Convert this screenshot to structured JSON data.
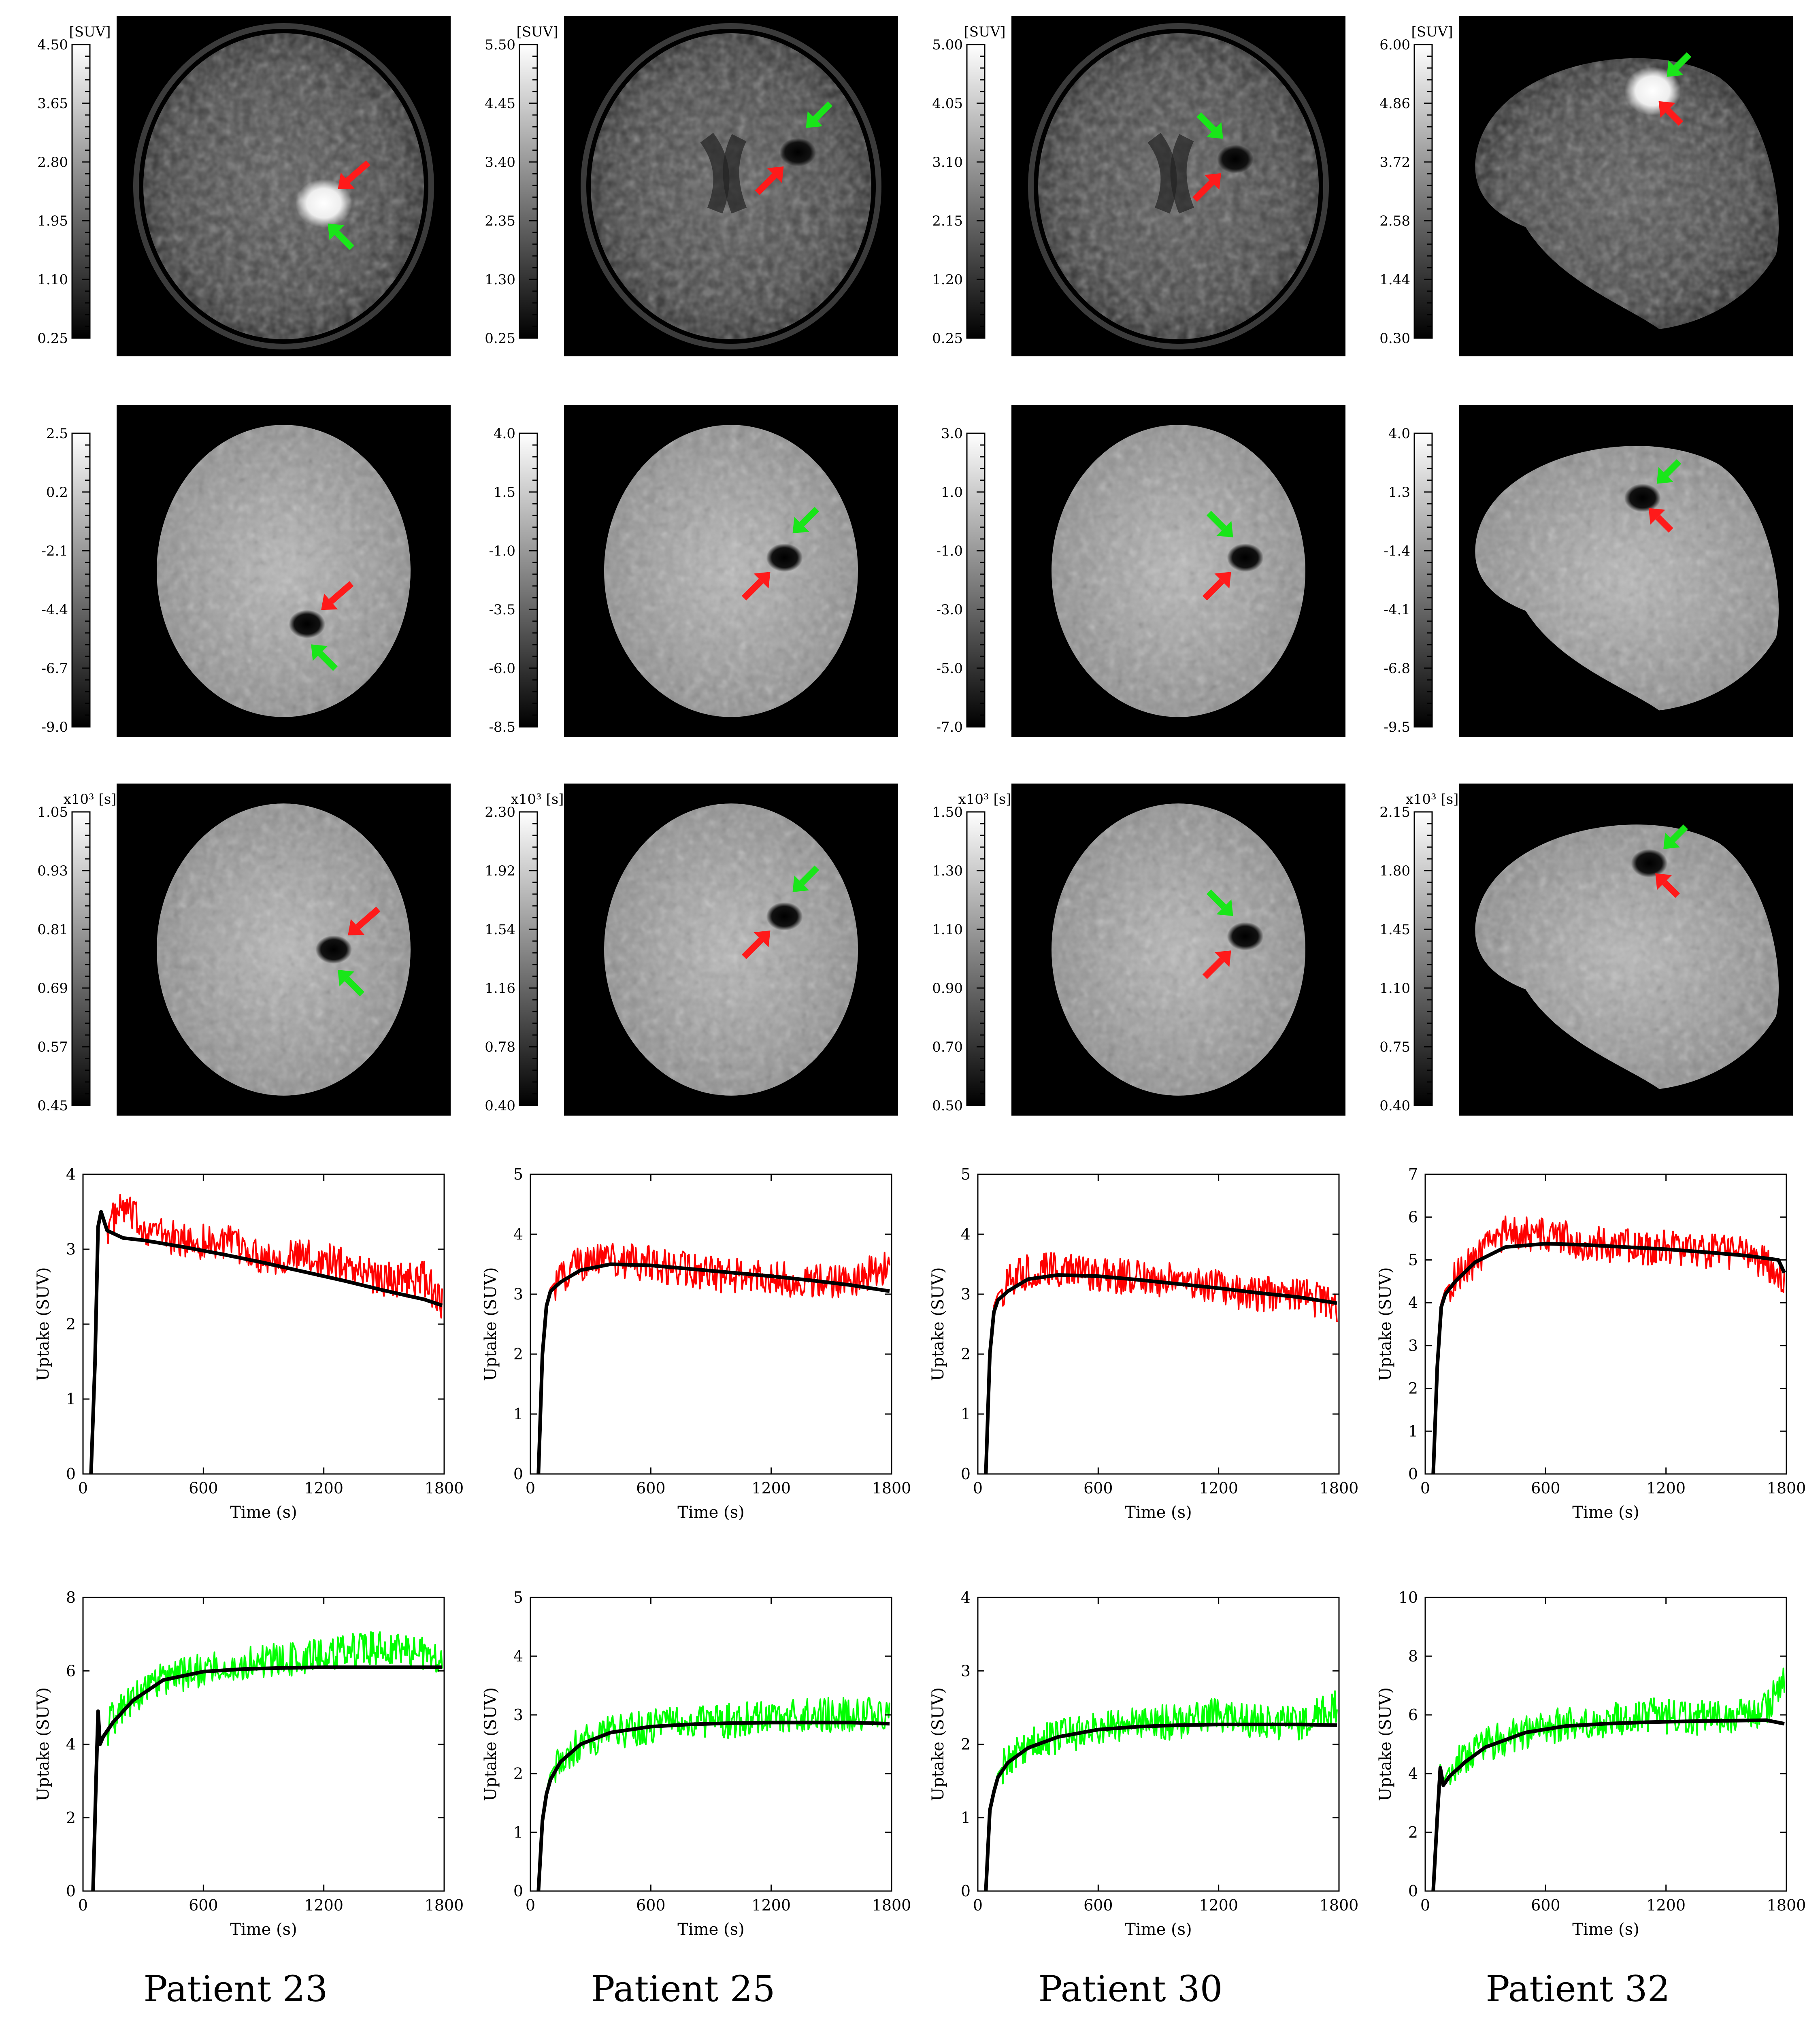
{
  "columns": [
    {
      "name": "Patient 23"
    },
    {
      "name": "Patient 25"
    },
    {
      "name": "Patient 30"
    },
    {
      "name": "Patient 32"
    }
  ],
  "colorbar_units": [
    "[SUV]",
    "",
    "x10³ [s]"
  ],
  "colorbars": [
    [
      {
        "ticks": [
          "4.50",
          "3.65",
          "2.80",
          "1.95",
          "1.10",
          "0.25"
        ]
      },
      {
        "ticks": [
          "5.50",
          "4.45",
          "3.40",
          "2.35",
          "1.30",
          "0.25"
        ]
      },
      {
        "ticks": [
          "5.00",
          "4.05",
          "3.10",
          "2.15",
          "1.20",
          "0.25"
        ]
      },
      {
        "ticks": [
          "6.00",
          "4.86",
          "3.72",
          "2.58",
          "1.44",
          "0.30"
        ]
      }
    ],
    [
      {
        "ticks": [
          "2.5",
          "0.2",
          "-2.1",
          "-4.4",
          "-6.7",
          "-9.0"
        ]
      },
      {
        "ticks": [
          "4.0",
          "1.5",
          "-1.0",
          "-3.5",
          "-6.0",
          "-8.5"
        ]
      },
      {
        "ticks": [
          "3.0",
          "1.0",
          "-1.0",
          "-3.0",
          "-5.0",
          "-7.0"
        ]
      },
      {
        "ticks": [
          "4.0",
          "1.3",
          "-1.4",
          "-4.1",
          "-6.8",
          "-9.5"
        ]
      }
    ],
    [
      {
        "ticks": [
          "1.05",
          "0.93",
          "0.81",
          "0.69",
          "0.57",
          "0.45"
        ]
      },
      {
        "ticks": [
          "2.30",
          "1.92",
          "1.54",
          "1.16",
          "0.78",
          "0.40"
        ]
      },
      {
        "ticks": [
          "1.50",
          "1.30",
          "1.10",
          "0.90",
          "0.70",
          "0.50"
        ]
      },
      {
        "ticks": [
          "2.15",
          "1.80",
          "1.45",
          "1.10",
          "0.75",
          "0.40"
        ]
      }
    ]
  ],
  "arrow_colors": {
    "red": "#ff1a1a",
    "green": "#19e619"
  },
  "chart_data": [
    {
      "type": "line",
      "panel": "patient-23-red",
      "xlabel": "Time (s)",
      "ylabel": "Uptake (SUV)",
      "xlim": [
        0,
        1800
      ],
      "ylim": [
        0,
        4
      ],
      "xticks": [
        0,
        600,
        1200,
        1800
      ],
      "yticks": [
        0,
        1,
        2,
        3,
        4
      ],
      "series": [
        {
          "color": "#ff0000",
          "noisy": true,
          "x": [
            40,
            60,
            75,
            90,
            120,
            200,
            300,
            500,
            700,
            900,
            1100,
            1300,
            1500,
            1700,
            1790
          ],
          "y": [
            0,
            1.5,
            3.3,
            3.5,
            3.3,
            3.55,
            3.3,
            3.1,
            3.1,
            2.9,
            2.9,
            2.8,
            2.6,
            2.6,
            2.3
          ]
        },
        {
          "color": "#000000",
          "x": [
            40,
            60,
            75,
            90,
            120,
            200,
            300,
            500,
            700,
            900,
            1100,
            1300,
            1500,
            1700,
            1790
          ],
          "y": [
            0,
            1.5,
            3.3,
            3.5,
            3.25,
            3.15,
            3.12,
            3.03,
            2.93,
            2.82,
            2.7,
            2.58,
            2.45,
            2.33,
            2.25
          ]
        }
      ]
    },
    {
      "type": "line",
      "panel": "patient-25-red",
      "xlabel": "Time (s)",
      "ylabel": "Uptake (SUV)",
      "xlim": [
        0,
        1800
      ],
      "ylim": [
        0,
        5
      ],
      "xticks": [
        0,
        600,
        1200,
        1800
      ],
      "yticks": [
        0,
        1,
        2,
        3,
        4,
        5
      ],
      "series": [
        {
          "color": "#ff0000",
          "noisy": true,
          "x": [
            40,
            60,
            80,
            100,
            150,
            250,
            400,
            600,
            800,
            1000,
            1200,
            1400,
            1600,
            1790
          ],
          "y": [
            0,
            2,
            2.8,
            3.1,
            3.3,
            3.5,
            3.6,
            3.5,
            3.4,
            3.3,
            3.3,
            3.2,
            3.2,
            3.5
          ]
        },
        {
          "color": "#000000",
          "x": [
            40,
            60,
            80,
            100,
            150,
            250,
            400,
            600,
            800,
            1000,
            1200,
            1400,
            1600,
            1790
          ],
          "y": [
            0,
            2,
            2.8,
            3.05,
            3.2,
            3.4,
            3.5,
            3.48,
            3.42,
            3.36,
            3.3,
            3.23,
            3.15,
            3.05
          ]
        }
      ]
    },
    {
      "type": "line",
      "panel": "patient-30-red",
      "xlabel": "Time (s)",
      "ylabel": "Uptake (SUV)",
      "xlim": [
        0,
        1800
      ],
      "ylim": [
        0,
        5
      ],
      "xticks": [
        0,
        600,
        1200,
        1800
      ],
      "yticks": [
        0,
        1,
        2,
        3,
        4,
        5
      ],
      "series": [
        {
          "color": "#ff0000",
          "noisy": true,
          "x": [
            40,
            60,
            80,
            100,
            150,
            250,
            400,
            600,
            800,
            1000,
            1200,
            1400,
            1600,
            1790
          ],
          "y": [
            0,
            2,
            2.8,
            3.0,
            3.2,
            3.4,
            3.4,
            3.3,
            3.3,
            3.2,
            3.1,
            3.0,
            3.0,
            2.8
          ]
        },
        {
          "color": "#000000",
          "x": [
            40,
            60,
            80,
            100,
            150,
            250,
            400,
            600,
            800,
            1000,
            1200,
            1400,
            1600,
            1790
          ],
          "y": [
            0,
            2,
            2.7,
            2.9,
            3.05,
            3.25,
            3.32,
            3.3,
            3.24,
            3.17,
            3.1,
            3.02,
            2.95,
            2.85
          ]
        }
      ]
    },
    {
      "type": "line",
      "panel": "patient-32-red",
      "xlabel": "Time (s)",
      "ylabel": "Uptake (SUV)",
      "xlim": [
        0,
        1800
      ],
      "ylim": [
        0,
        7
      ],
      "xticks": [
        0,
        600,
        1200,
        1800
      ],
      "yticks": [
        0,
        1,
        2,
        3,
        4,
        5,
        6,
        7
      ],
      "series": [
        {
          "color": "#ff0000",
          "noisy": true,
          "x": [
            40,
            60,
            80,
            100,
            150,
            250,
            400,
            600,
            800,
            1000,
            1200,
            1400,
            1600,
            1790
          ],
          "y": [
            0,
            2.5,
            4,
            4.3,
            4.6,
            5.0,
            5.6,
            5.6,
            5.4,
            5.3,
            5.3,
            5.2,
            5.2,
            4.6
          ]
        },
        {
          "color": "#000000",
          "x": [
            40,
            60,
            80,
            100,
            150,
            250,
            400,
            600,
            800,
            1000,
            1200,
            1400,
            1600,
            1760,
            1790
          ],
          "y": [
            0,
            2.5,
            3.9,
            4.2,
            4.5,
            4.95,
            5.3,
            5.38,
            5.35,
            5.3,
            5.25,
            5.18,
            5.1,
            5.0,
            4.7
          ]
        }
      ]
    },
    {
      "type": "line",
      "panel": "patient-23-green",
      "xlabel": "Time (s)",
      "ylabel": "Uptake (SUV)",
      "xlim": [
        0,
        1800
      ],
      "ylim": [
        0,
        8
      ],
      "xticks": [
        0,
        600,
        1200,
        1800
      ],
      "yticks": [
        0,
        2,
        4,
        6,
        8
      ],
      "series": [
        {
          "color": "#00ff00",
          "noisy": true,
          "x": [
            50,
            65,
            75,
            85,
            100,
            150,
            250,
            400,
            600,
            800,
            1000,
            1200,
            1400,
            1600,
            1790
          ],
          "y": [
            0,
            3,
            4.9,
            4.0,
            4.2,
            4.7,
            5.3,
            5.8,
            6.0,
            6.2,
            6.3,
            6.4,
            6.6,
            6.6,
            6.3
          ]
        },
        {
          "color": "#000000",
          "x": [
            50,
            65,
            75,
            85,
            100,
            150,
            250,
            400,
            600,
            800,
            1000,
            1200,
            1400,
            1600,
            1790
          ],
          "y": [
            0,
            3,
            4.9,
            4.0,
            4.2,
            4.6,
            5.2,
            5.75,
            5.98,
            6.05,
            6.08,
            6.1,
            6.1,
            6.1,
            6.1
          ]
        }
      ]
    },
    {
      "type": "line",
      "panel": "patient-25-green",
      "xlabel": "Time (s)",
      "ylabel": "Uptake (SUV)",
      "xlim": [
        0,
        1800
      ],
      "ylim": [
        0,
        5
      ],
      "xticks": [
        0,
        600,
        1200,
        1800
      ],
      "yticks": [
        0,
        1,
        2,
        3,
        4,
        5
      ],
      "series": [
        {
          "color": "#00ff00",
          "noisy": true,
          "x": [
            40,
            60,
            80,
            100,
            150,
            250,
            400,
            600,
            800,
            1000,
            1200,
            1400,
            1600,
            1790
          ],
          "y": [
            0,
            1.2,
            1.7,
            2.0,
            2.3,
            2.5,
            2.7,
            2.8,
            2.9,
            2.9,
            3.0,
            3.0,
            3.0,
            3.0
          ]
        },
        {
          "color": "#000000",
          "x": [
            40,
            60,
            80,
            100,
            150,
            250,
            400,
            600,
            800,
            1000,
            1200,
            1400,
            1600,
            1790
          ],
          "y": [
            0,
            1.2,
            1.65,
            1.9,
            2.2,
            2.5,
            2.7,
            2.8,
            2.84,
            2.86,
            2.87,
            2.87,
            2.87,
            2.85
          ]
        }
      ]
    },
    {
      "type": "line",
      "panel": "patient-30-green",
      "xlabel": "Time (s)",
      "ylabel": "Uptake (SUV)",
      "xlim": [
        0,
        1800
      ],
      "ylim": [
        0,
        4
      ],
      "xticks": [
        0,
        600,
        1200,
        1800
      ],
      "yticks": [
        0,
        1,
        2,
        3,
        4
      ],
      "series": [
        {
          "color": "#00ff00",
          "noisy": true,
          "x": [
            40,
            60,
            80,
            100,
            150,
            250,
            400,
            600,
            800,
            1000,
            1200,
            1400,
            1600,
            1790
          ],
          "y": [
            0,
            1.1,
            1.4,
            1.6,
            1.8,
            2.0,
            2.1,
            2.2,
            2.3,
            2.3,
            2.4,
            2.3,
            2.3,
            2.5
          ]
        },
        {
          "color": "#000000",
          "x": [
            40,
            60,
            80,
            100,
            150,
            250,
            400,
            600,
            800,
            1000,
            1200,
            1400,
            1600,
            1790
          ],
          "y": [
            0,
            1.1,
            1.35,
            1.55,
            1.75,
            1.95,
            2.1,
            2.2,
            2.24,
            2.26,
            2.27,
            2.27,
            2.27,
            2.26
          ]
        }
      ]
    },
    {
      "type": "line",
      "panel": "patient-32-green",
      "xlabel": "Time (s)",
      "ylabel": "Uptake (SUV)",
      "xlim": [
        0,
        1800
      ],
      "ylim": [
        0,
        10
      ],
      "xticks": [
        0,
        600,
        1200,
        1800
      ],
      "yticks": [
        0,
        2,
        4,
        6,
        8,
        10
      ],
      "series": [
        {
          "color": "#00ff00",
          "noisy": true,
          "x": [
            40,
            60,
            75,
            90,
            120,
            200,
            300,
            500,
            700,
            900,
            1100,
            1300,
            1500,
            1700,
            1790
          ],
          "y": [
            0,
            2.5,
            4.3,
            3.7,
            4.2,
            4.6,
            5.0,
            5.4,
            5.7,
            5.8,
            6.0,
            5.9,
            5.9,
            6.2,
            7.3
          ]
        },
        {
          "color": "#000000",
          "x": [
            40,
            60,
            75,
            90,
            120,
            200,
            300,
            500,
            700,
            900,
            1100,
            1300,
            1500,
            1700,
            1790
          ],
          "y": [
            0,
            2.5,
            4.2,
            3.6,
            3.9,
            4.4,
            4.9,
            5.4,
            5.62,
            5.7,
            5.75,
            5.78,
            5.8,
            5.82,
            5.7
          ]
        }
      ]
    }
  ]
}
